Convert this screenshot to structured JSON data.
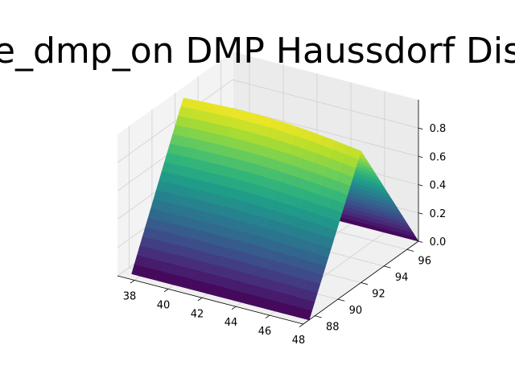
{
  "chart_data": {
    "type": "surface",
    "title": "e_dmp_on DMP Haussdorf Dis",
    "xlabel": "",
    "ylabel": "",
    "zlabel": "",
    "colormap": "viridis",
    "grid": true,
    "x_ticks": [
      "38",
      "40",
      "42",
      "44",
      "46",
      "48"
    ],
    "y_ticks": [
      "88",
      "90",
      "92",
      "94",
      "96"
    ],
    "z_ticks": [
      "0.0",
      "0.2",
      "0.4",
      "0.6",
      "0.8"
    ],
    "xlim": [
      37,
      48
    ],
    "ylim": [
      87,
      97
    ],
    "zlim": [
      0,
      1
    ],
    "surface": {
      "x": [
        37.5,
        48
      ],
      "y": [
        87.5,
        97
      ],
      "z_description_values": {
        "ridge_y": 92,
        "ridge_height_at_x_start": 0.98,
        "ridge_height_at_x_end": 0.93,
        "edge_height": 0.0
      }
    }
  }
}
